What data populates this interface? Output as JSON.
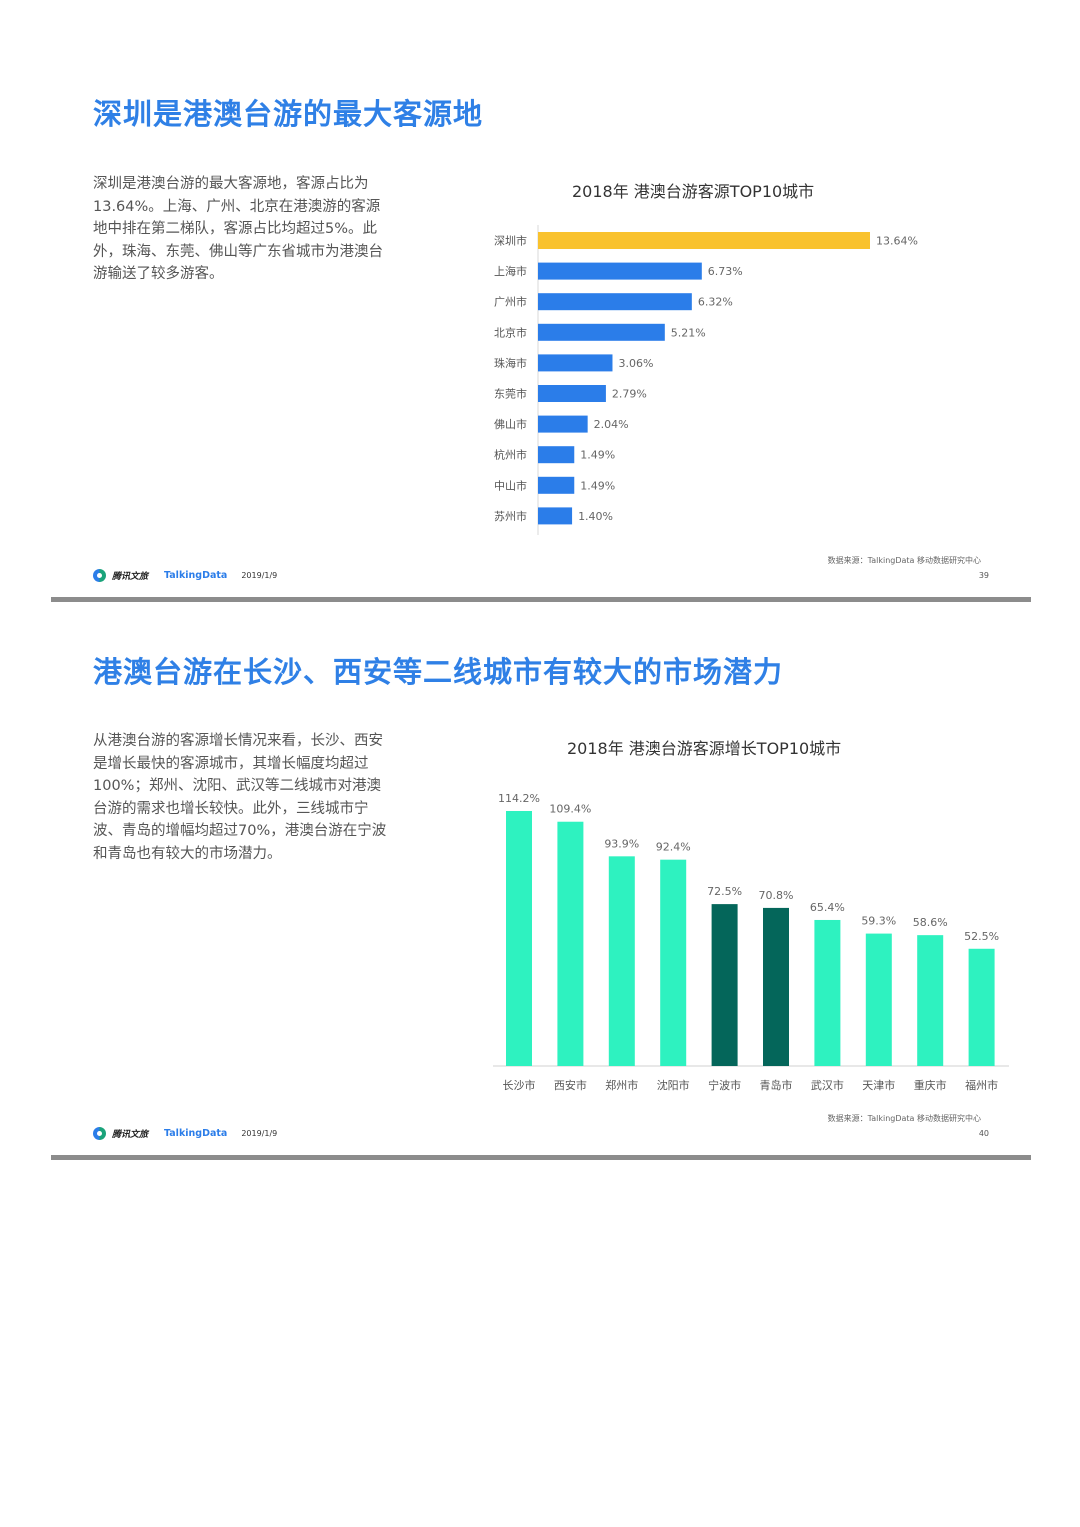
{
  "slides": [
    {
      "title": "深圳是港澳台游的最大客源地",
      "body": "深圳是港澳台游的最大客源地，客源占比为13.64%。上海、广州、北京在港澳游的客源地中排在第二梯队，客源占比均超过5%。此外，珠海、东莞、佛山等广东省城市为港澳台游输送了较多游客。",
      "chart_title": "2018年 港澳台游客源TOP10城市",
      "footer": {
        "logo": "腾讯文旅",
        "brand": "TalkingData",
        "date": "2019/1/9",
        "source": "数据来源：TalkingData 移动数据研究中心",
        "page": "39"
      }
    },
    {
      "title": "港澳台游在长沙、西安等二线城市有较大的市场潜力",
      "body": "从港澳台游的客源增长情况来看，长沙、西安是增长最快的客源城市，其增长幅度均超过100%；郑州、沈阳、武汉等二线城市对港澳台游的需求也增长较快。此外，三线城市宁波、青岛的增幅均超过70%，港澳台游在宁波和青岛也有较大的市场潜力。",
      "chart_title": "2018年 港澳台游客源增长TOP10城市",
      "footer": {
        "logo": "腾讯文旅",
        "brand": "TalkingData",
        "date": "2019/1/9",
        "source": "数据来源：TalkingData 移动数据研究中心",
        "page": "40"
      }
    }
  ],
  "chart_data": [
    {
      "type": "bar",
      "orientation": "horizontal",
      "title": "2018年 港澳台游客源TOP10城市",
      "categories": [
        "深圳市",
        "上海市",
        "广州市",
        "北京市",
        "珠海市",
        "东莞市",
        "佛山市",
        "杭州市",
        "中山市",
        "苏州市"
      ],
      "values": [
        13.64,
        6.73,
        6.32,
        5.21,
        3.06,
        2.79,
        2.04,
        1.49,
        1.49,
        1.4
      ],
      "labels": [
        "13.64%",
        "6.73%",
        "6.32%",
        "5.21%",
        "3.06%",
        "2.79%",
        "2.04%",
        "1.49%",
        "1.49%",
        "1.40%"
      ],
      "unit": "%",
      "colors": {
        "highlight": "#f9c22e",
        "default": "#2b7de9"
      },
      "highlight_index": [
        0
      ]
    },
    {
      "type": "bar",
      "orientation": "vertical",
      "title": "2018年 港澳台游客源增长TOP10城市",
      "categories": [
        "长沙市",
        "西安市",
        "郑州市",
        "沈阳市",
        "宁波市",
        "青岛市",
        "武汉市",
        "天津市",
        "重庆市",
        "福州市"
      ],
      "values": [
        114.2,
        109.4,
        93.9,
        92.4,
        72.5,
        70.8,
        65.4,
        59.3,
        58.6,
        52.5
      ],
      "labels": [
        "114.2%",
        "109.4%",
        "93.9%",
        "92.4%",
        "72.5%",
        "70.8%",
        "65.4%",
        "59.3%",
        "58.6%",
        "52.5%"
      ],
      "unit": "%",
      "colors": {
        "highlight": "#04665a",
        "default": "#2ef2c0"
      },
      "highlight_index": [
        4,
        5
      ]
    }
  ]
}
